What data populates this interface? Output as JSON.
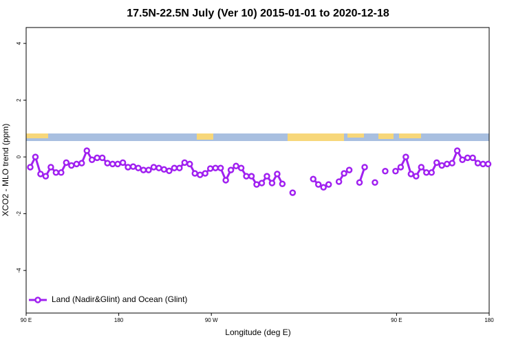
{
  "chart_data": {
    "type": "line",
    "title": "17.5N-22.5N July (Ver 10)   2015-01-01 to 2020-12-18",
    "xlabel": "Longitude (deg E)",
    "ylabel": "XCO2 - MLO trend (ppm)",
    "x": [
      94,
      99,
      104,
      109,
      114,
      119,
      124,
      129,
      134,
      139,
      144,
      149,
      154,
      159,
      164,
      169,
      174,
      179,
      184,
      189,
      194,
      199,
      204,
      209,
      214,
      219,
      224,
      229,
      234,
      239,
      244,
      249,
      254,
      259,
      264,
      269,
      274,
      279,
      284,
      289,
      294,
      299,
      304,
      309,
      314,
      319,
      324,
      329,
      334,
      339,
      344,
      349,
      354,
      359,
      364,
      369,
      374,
      379,
      384,
      389,
      394,
      399,
      404,
      409,
      414,
      419,
      424,
      429,
      434,
      439,
      444,
      449,
      454,
      459,
      464,
      469,
      474,
      479,
      484,
      489,
      494,
      499,
      504,
      509,
      514,
      519,
      524,
      529,
      534,
      539
    ],
    "series": [
      {
        "name": "Land (Nadir&Glint) and Ocean (Glint)",
        "color": "#a020f0",
        "values": [
          -0.36,
          0,
          -0.6,
          -0.68,
          -0.36,
          -0.55,
          -0.55,
          -0.2,
          -0.3,
          -0.25,
          -0.22,
          0.22,
          -0.1,
          -0.03,
          -0.03,
          -0.22,
          -0.25,
          -0.25,
          -0.2,
          -0.36,
          -0.34,
          -0.39,
          -0.46,
          -0.46,
          -0.36,
          -0.39,
          -0.44,
          -0.49,
          -0.39,
          -0.39,
          -0.2,
          -0.25,
          -0.58,
          -0.63,
          -0.58,
          -0.41,
          -0.39,
          -0.39,
          -0.82,
          -0.46,
          -0.32,
          -0.39,
          -0.68,
          -0.68,
          -0.97,
          -0.92,
          -0.68,
          -0.92,
          -0.6,
          -0.95,
          null,
          -1.26,
          null,
          null,
          null,
          -0.78,
          -0.97,
          -1.07,
          -0.97,
          null,
          -0.87,
          -0.58,
          -0.46,
          null,
          -0.9,
          -0.36,
          null,
          -0.9,
          null,
          -0.5,
          null,
          -0.5,
          -0.36,
          0,
          -0.6,
          -0.68,
          -0.36,
          -0.55,
          -0.55,
          -0.2,
          -0.3,
          -0.25,
          -0.22,
          0.22,
          -0.1,
          -0.03,
          -0.03,
          -0.22,
          -0.25,
          -0.25
        ]
      }
    ],
    "xlim": [
      90,
      540
    ],
    "xticks": [
      {
        "value": 90,
        "label": "90 E"
      },
      180,
      {
        "value": 270,
        "label": "90 W"
      },
      {
        "value": 450,
        "label": "90 E"
      },
      {
        "value": 540,
        "label": "180"
      }
    ],
    "ylim": [
      -5.5,
      4.56
    ],
    "yticks": [
      -4,
      -2,
      0,
      2,
      4
    ],
    "legend": "bottom-left"
  }
}
